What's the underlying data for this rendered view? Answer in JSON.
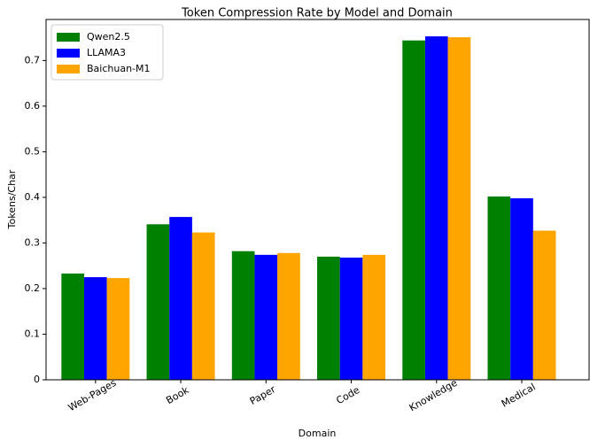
{
  "chart_data": {
    "type": "bar",
    "title": "Token Compression Rate by Model and Domain",
    "xlabel": "Domain",
    "ylabel": "Tokens/Char",
    "categories": [
      "Web-Pages",
      "Book",
      "Paper",
      "Code",
      "Knowledge",
      "Medical"
    ],
    "series": [
      {
        "name": "Qwen2.5",
        "color": "green",
        "values": [
          0.233,
          0.341,
          0.282,
          0.27,
          0.744,
          0.402
        ]
      },
      {
        "name": "LLAMA3",
        "color": "blue",
        "values": [
          0.225,
          0.357,
          0.274,
          0.268,
          0.753,
          0.398
        ]
      },
      {
        "name": "Baichuan-M1",
        "color": "orange",
        "values": [
          0.223,
          0.323,
          0.278,
          0.274,
          0.751,
          0.327
        ]
      }
    ],
    "ylim": [
      0,
      0.79
    ],
    "yticks": [
      0.0,
      0.1,
      0.2,
      0.3,
      0.4,
      0.5,
      0.6,
      0.7
    ],
    "legend": "upper left"
  }
}
